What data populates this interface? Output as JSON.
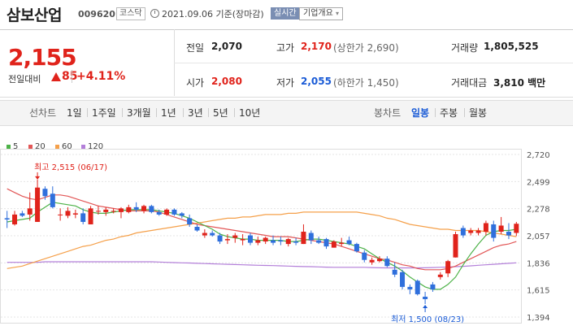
{
  "header": {
    "title": "삼보산업",
    "code": "009620",
    "market": "코스닥",
    "date": "2021.09.06 기준(장마감)",
    "realtime": "실시간",
    "company_btn": "기업개요",
    "company_btn_arrow": "▾"
  },
  "summary": {
    "price": "2,155",
    "change_label": "전일대비",
    "change_value": "85",
    "change_pct": "+4.11%",
    "prev_close_label": "전일",
    "prev_close": "2,070",
    "high_label": "고가",
    "high": "2,170",
    "high_limit": "(상한가 2,690)",
    "volume_label": "거래량",
    "volume": "1,805,525",
    "open_label": "시가",
    "open": "2,080",
    "low_label": "저가",
    "low": "2,055",
    "low_limit": "(하한가 1,450)",
    "amount_label": "거래대금",
    "amount": "3,810 백만"
  },
  "tabs": {
    "line_chart_label": "선차트",
    "line_tabs": [
      "1일",
      "1주일",
      "3개월",
      "1년",
      "3년",
      "5년",
      "10년"
    ],
    "candle_chart_label": "봉차트",
    "candle_tabs": [
      "일봉",
      "주봉",
      "월봉"
    ],
    "active_candle_tab": "일봉"
  },
  "colors": {
    "up": "#e0231b",
    "down": "#2f6fdc",
    "ma5": "#4db248",
    "ma20": "#e25757",
    "ma60": "#f5a04a",
    "ma120": "#b37fd9"
  },
  "chart_data": {
    "type": "candlestick",
    "y_ticks": [
      "2,720",
      "2,499",
      "2,278",
      "2,057",
      "1,836",
      "1,615",
      "1,394"
    ],
    "ylim": [
      1394,
      2720
    ],
    "grid": true,
    "legend": [
      "5",
      "20",
      "60",
      "120"
    ],
    "annotations": {
      "high": "최고 2,515 (06/17)",
      "low": "최저 1,500 (08/23)"
    },
    "candles": [
      [
        2200,
        2260,
        2120,
        2190
      ],
      [
        2150,
        2260,
        2140,
        2230
      ],
      [
        2240,
        2260,
        2210,
        2220
      ],
      [
        2230,
        2410,
        2180,
        2280
      ],
      [
        2170,
        2515,
        2170,
        2450
      ],
      [
        2440,
        2460,
        2350,
        2380
      ],
      [
        2400,
        2460,
        2280,
        2290
      ],
      [
        2230,
        2280,
        2180,
        2230
      ],
      [
        2220,
        2290,
        2200,
        2260
      ],
      [
        2230,
        2270,
        2200,
        2240
      ],
      [
        2240,
        2280,
        2150,
        2170
      ],
      [
        2150,
        2300,
        2150,
        2280
      ],
      [
        2260,
        2300,
        2230,
        2260
      ],
      [
        2250,
        2290,
        2220,
        2270
      ],
      [
        2260,
        2280,
        2240,
        2260
      ],
      [
        2250,
        2290,
        2200,
        2280
      ],
      [
        2250,
        2310,
        2240,
        2290
      ],
      [
        2290,
        2330,
        2250,
        2270
      ],
      [
        2260,
        2310,
        2240,
        2300
      ],
      [
        2300,
        2310,
        2240,
        2250
      ],
      [
        2250,
        2270,
        2220,
        2230
      ],
      [
        2230,
        2280,
        2220,
        2270
      ],
      [
        2270,
        2280,
        2220,
        2230
      ],
      [
        2240,
        2250,
        2200,
        2220
      ],
      [
        2200,
        2230,
        2130,
        2150
      ],
      [
        2130,
        2150,
        2090,
        2100
      ],
      [
        2060,
        2110,
        2040,
        2080
      ],
      [
        2080,
        2100,
        2050,
        2060
      ],
      [
        2060,
        2080,
        1990,
        2010
      ],
      [
        2020,
        2070,
        1990,
        2030
      ],
      [
        2040,
        2080,
        2000,
        2060
      ],
      [
        2020,
        2070,
        1980,
        2030
      ],
      [
        2060,
        2080,
        1980,
        2000
      ],
      [
        2000,
        2050,
        1980,
        2020
      ],
      [
        2010,
        2050,
        1990,
        2040
      ],
      [
        2020,
        2060,
        1980,
        2000
      ],
      [
        2020,
        2050,
        1980,
        2010
      ],
      [
        1990,
        2040,
        1970,
        2030
      ],
      [
        2010,
        2040,
        1980,
        2000
      ],
      [
        1990,
        2150,
        1990,
        2090
      ],
      [
        2080,
        2100,
        1990,
        2020
      ],
      [
        2020,
        2050,
        1990,
        2000
      ],
      [
        2030,
        2040,
        1950,
        1970
      ],
      [
        1960,
        2020,
        1960,
        2010
      ],
      [
        1990,
        2040,
        1970,
        2000
      ],
      [
        2020,
        2050,
        1980,
        1990
      ],
      [
        1990,
        2000,
        1920,
        1930
      ],
      [
        1920,
        1940,
        1840,
        1860
      ],
      [
        1840,
        1880,
        1820,
        1860
      ],
      [
        1850,
        1890,
        1840,
        1870
      ],
      [
        1870,
        1890,
        1800,
        1810
      ],
      [
        1780,
        1840,
        1720,
        1740
      ],
      [
        1760,
        1780,
        1620,
        1640
      ],
      [
        1640,
        1660,
        1580,
        1620
      ],
      [
        1690,
        1700,
        1570,
        1580
      ],
      [
        1560,
        1600,
        1500,
        1540
      ],
      [
        1660,
        1680,
        1600,
        1620
      ],
      [
        1720,
        1760,
        1700,
        1740
      ],
      [
        1750,
        1860,
        1720,
        1850
      ],
      [
        1880,
        2090,
        1880,
        2070
      ],
      [
        2120,
        2140,
        2040,
        2060
      ],
      [
        2080,
        2120,
        2060,
        2100
      ],
      [
        2080,
        2120,
        2060,
        2100
      ],
      [
        2090,
        2180,
        2060,
        2160
      ],
      [
        2150,
        2180,
        2010,
        2040
      ],
      [
        2090,
        2210,
        2070,
        2140
      ],
      [
        2090,
        2160,
        2030,
        2060
      ],
      [
        2080,
        2170,
        2055,
        2155
      ]
    ],
    "ma5": [
      2170,
      2180,
      2190,
      2200,
      2250,
      2290,
      2330,
      2320,
      2310,
      2300,
      2270,
      2250,
      2240,
      2240,
      2250,
      2260,
      2270,
      2270,
      2270,
      2270,
      2260,
      2250,
      2240,
      2220,
      2200,
      2170,
      2140,
      2110,
      2070,
      2050,
      2040,
      2030,
      2030,
      2020,
      2020,
      2020,
      2020,
      2010,
      2010,
      2020,
      2030,
      2030,
      2020,
      2010,
      2000,
      1990,
      1970,
      1950,
      1910,
      1870,
      1840,
      1810,
      1770,
      1720,
      1680,
      1640,
      1620,
      1620,
      1660,
      1720,
      1820,
      1910,
      1990,
      2060,
      2090,
      2100,
      2100,
      2110
    ],
    "ma20": [
      2440,
      2410,
      2380,
      2360,
      2350,
      2370,
      2390,
      2390,
      2380,
      2360,
      2340,
      2320,
      2300,
      2290,
      2280,
      2270,
      2260,
      2260,
      2260,
      2260,
      2250,
      2230,
      2210,
      2190,
      2170,
      2150,
      2140,
      2130,
      2120,
      2110,
      2100,
      2090,
      2080,
      2070,
      2060,
      2050,
      2050,
      2050,
      2040,
      2030,
      2020,
      2010,
      2000,
      1990,
      1970,
      1950,
      1930,
      1910,
      1890,
      1870,
      1860,
      1840,
      1820,
      1810,
      1790,
      1780,
      1780,
      1780,
      1790,
      1810,
      1840,
      1870,
      1900,
      1930,
      1960,
      1980,
      1990,
      2010
    ],
    "ma60": [
      1790,
      1800,
      1810,
      1830,
      1850,
      1870,
      1890,
      1910,
      1930,
      1950,
      1970,
      1980,
      2000,
      2020,
      2030,
      2050,
      2060,
      2080,
      2090,
      2100,
      2110,
      2120,
      2130,
      2140,
      2150,
      2160,
      2170,
      2180,
      2190,
      2200,
      2200,
      2210,
      2210,
      2220,
      2230,
      2230,
      2230,
      2240,
      2240,
      2250,
      2250,
      2250,
      2250,
      2250,
      2250,
      2250,
      2250,
      2240,
      2230,
      2220,
      2200,
      2190,
      2170,
      2150,
      2140,
      2130,
      2120,
      2110,
      2110,
      2100,
      2100,
      2100,
      2100,
      2090,
      2080,
      2070,
      2060,
      2050
    ],
    "ma120": [
      1840,
      1840,
      1840,
      1840,
      1840,
      1845,
      1845,
      1845,
      1845,
      1845,
      1845,
      1845,
      1845,
      1845,
      1845,
      1845,
      1845,
      1845,
      1845,
      1845,
      1843,
      1840,
      1838,
      1836,
      1835,
      1832,
      1830,
      1828,
      1826,
      1824,
      1822,
      1820,
      1818,
      1816,
      1815,
      1814,
      1812,
      1810,
      1808,
      1806,
      1805,
      1803,
      1801,
      1800,
      1800,
      1800,
      1800,
      1800,
      1798,
      1796,
      1795,
      1795,
      1795,
      1795,
      1795,
      1796,
      1798,
      1800,
      1802,
      1805,
      1808,
      1812,
      1816,
      1820,
      1824,
      1828,
      1832,
      1836
    ]
  }
}
